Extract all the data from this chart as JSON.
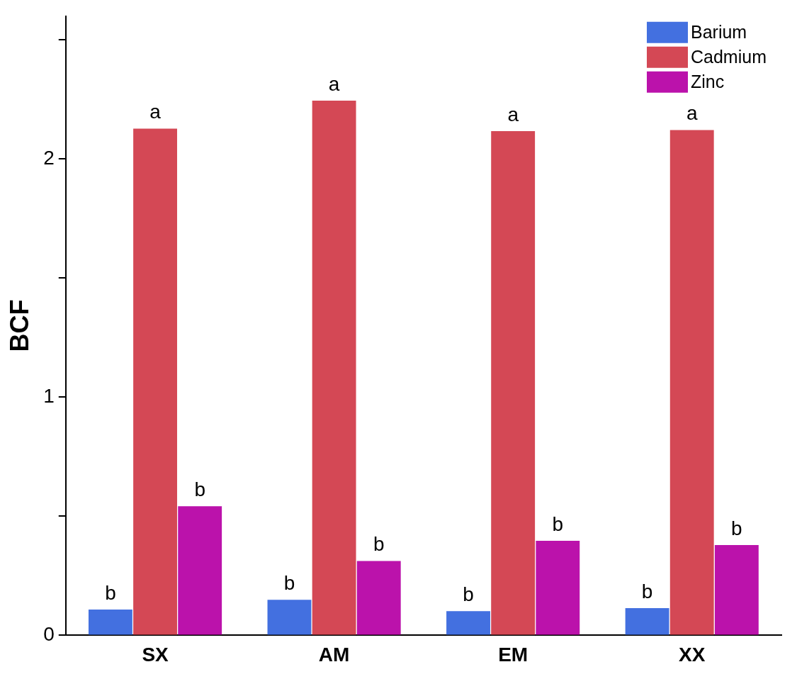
{
  "chart_data": {
    "type": "bar",
    "ylabel": "BCF",
    "categories": [
      "SX",
      "AM",
      "EM",
      "XX"
    ],
    "series": [
      {
        "name": "Barium",
        "color": "#4370e0",
        "values": [
          0.108,
          0.149,
          0.102,
          0.114
        ],
        "value_labels": [
          "b",
          "b",
          "b",
          "b"
        ]
      },
      {
        "name": "Cadmium",
        "color": "#d44855",
        "values": [
          2.128,
          2.245,
          2.117,
          2.122
        ],
        "value_labels": [
          "a",
          "a",
          "a",
          "a"
        ]
      },
      {
        "name": "Zinc",
        "color": "#bb12ab",
        "values": [
          0.542,
          0.312,
          0.397,
          0.379
        ],
        "value_labels": [
          "b",
          "b",
          "b",
          "b"
        ]
      }
    ],
    "ylim": [
      0,
      2.6
    ],
    "yticks": [
      0,
      {
        "value": 0.5,
        "label": null
      },
      1,
      {
        "value": 1.5,
        "label": null
      },
      2,
      {
        "value": 2.5,
        "label": null
      }
    ],
    "grid": false,
    "legend": "top right"
  }
}
